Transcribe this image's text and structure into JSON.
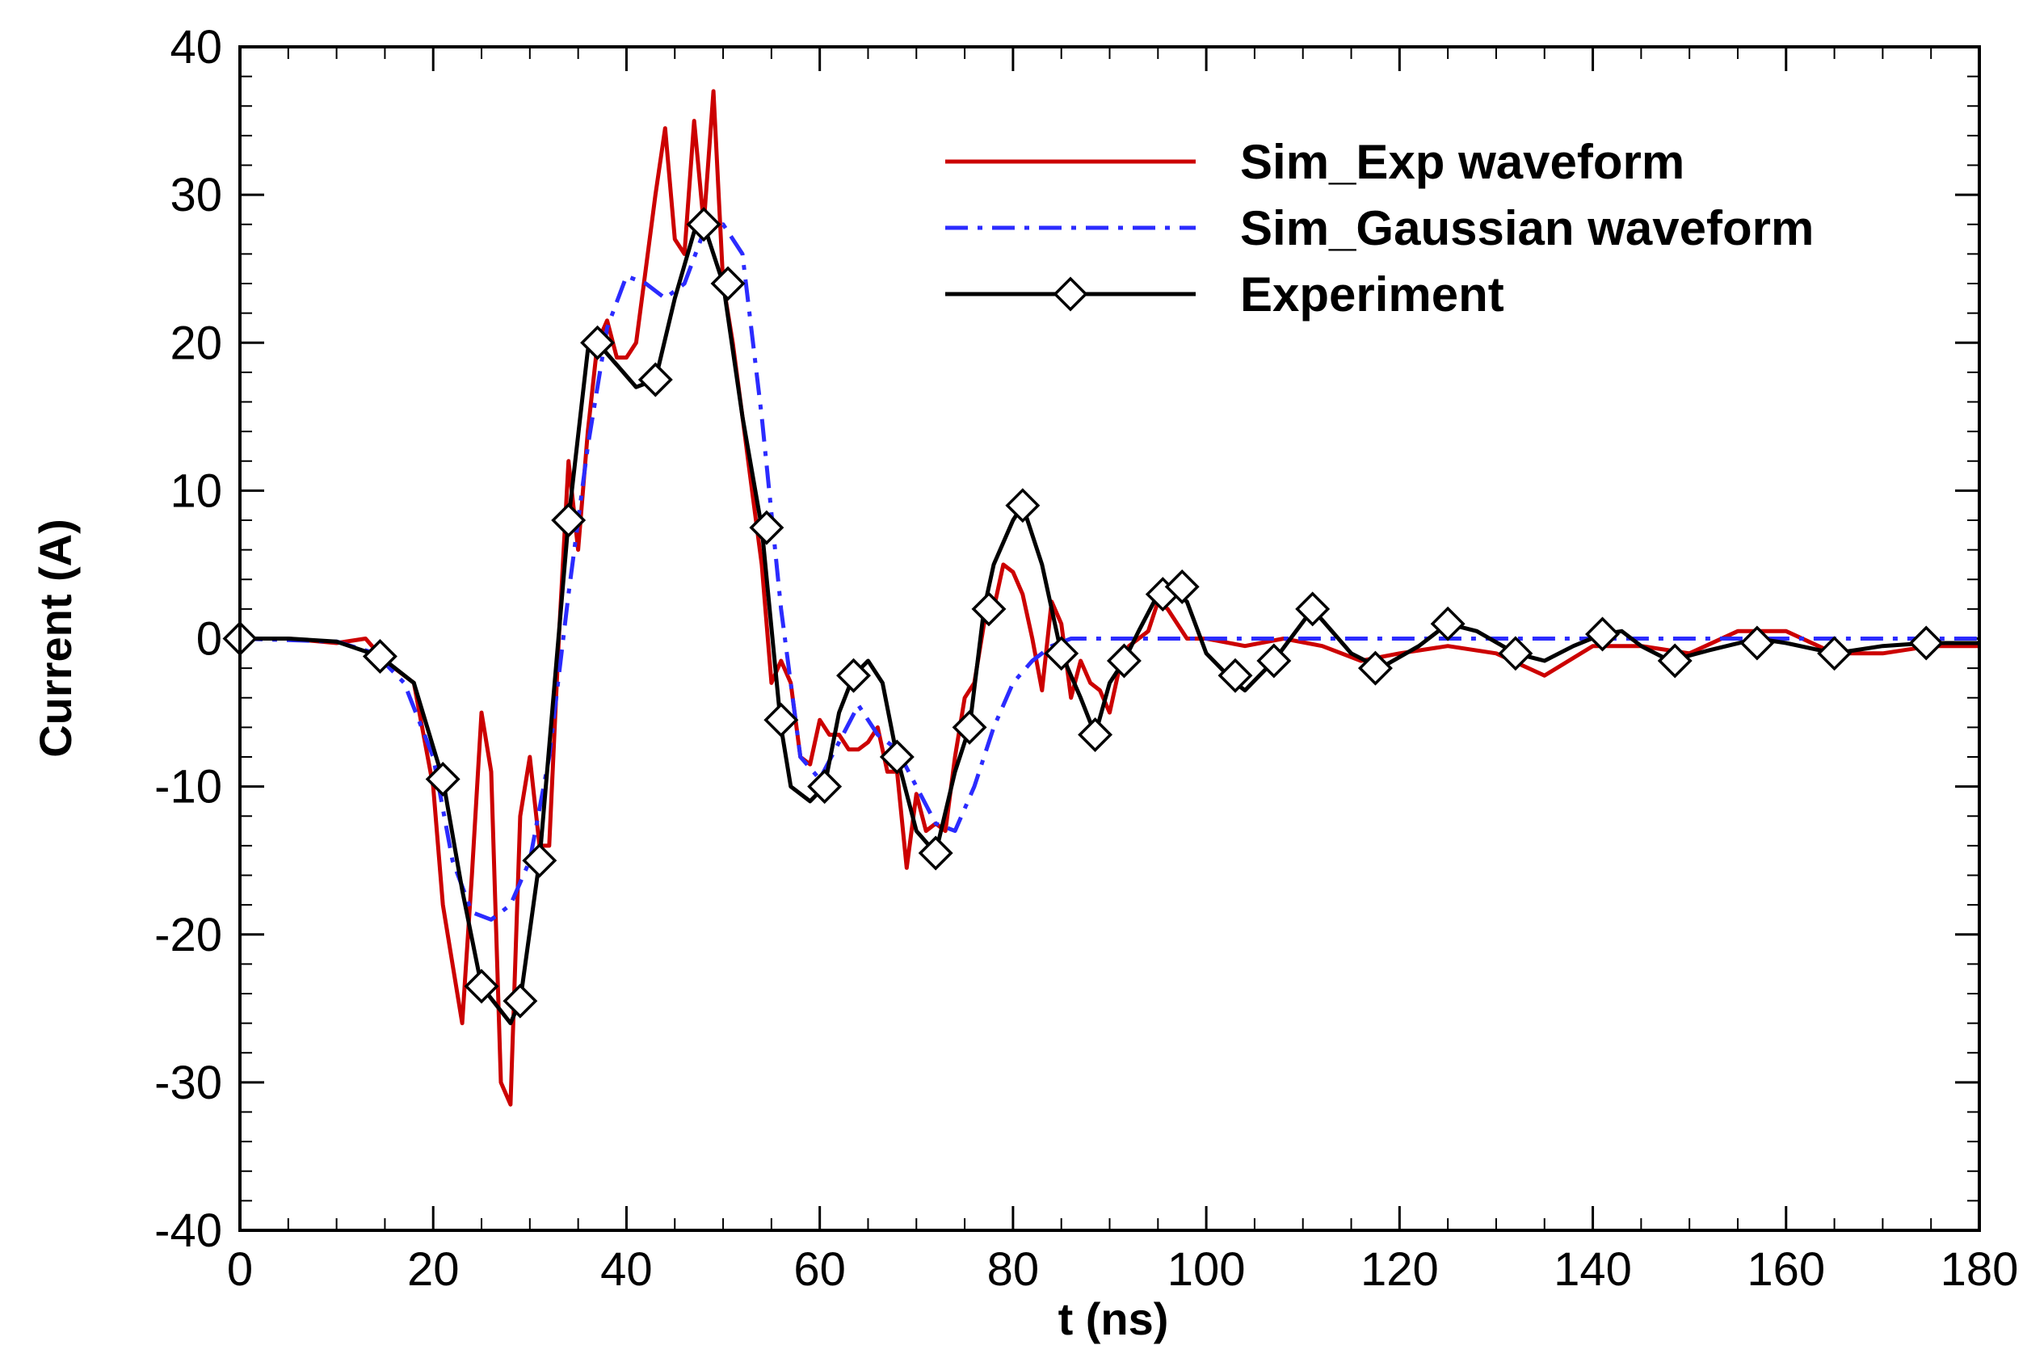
{
  "chart_data": {
    "type": "line",
    "title": "",
    "xlabel": "t (ns)",
    "ylabel": "Current (A)",
    "xlim": [
      0,
      180
    ],
    "ylim": [
      -40,
      40
    ],
    "xticks": [
      0,
      20,
      40,
      60,
      80,
      100,
      120,
      140,
      160,
      180
    ],
    "yticks": [
      -40,
      -30,
      -20,
      -10,
      0,
      10,
      20,
      30,
      40
    ],
    "grid": false,
    "legend_position": "top-right",
    "series": [
      {
        "name": "Sim_Exp waveform",
        "color": "#cc0000",
        "style": "solid",
        "marker": "none",
        "x": [
          0,
          5,
          10,
          13,
          15,
          18,
          20,
          21,
          22,
          23,
          24,
          25,
          26,
          27,
          28,
          29,
          30,
          31,
          32,
          33,
          34,
          35,
          36,
          37,
          38,
          39,
          40,
          41,
          42,
          43,
          44,
          45,
          46,
          47,
          48,
          49,
          50,
          51,
          52,
          53,
          54,
          55,
          56,
          57,
          58,
          59,
          60,
          61,
          62,
          63,
          64,
          65,
          66,
          67,
          68,
          69,
          70,
          71,
          72,
          73,
          74,
          75,
          76,
          77,
          78,
          79,
          80,
          81,
          82,
          83,
          84,
          85,
          86,
          87,
          88,
          89,
          90,
          91,
          92,
          93,
          94,
          95,
          96,
          98,
          100,
          104,
          108,
          112,
          116,
          120,
          125,
          130,
          135,
          140,
          145,
          150,
          155,
          160,
          165,
          170,
          175,
          180
        ],
        "y": [
          0,
          0,
          -0.3,
          0,
          -1.5,
          -3,
          -10,
          -18,
          -22,
          -26,
          -16,
          -5,
          -9,
          -30,
          -31.5,
          -12,
          -8,
          -14,
          -14,
          0,
          12,
          6,
          14,
          20,
          21.5,
          19,
          19,
          20,
          25,
          30,
          34.5,
          27,
          26,
          35,
          28,
          37,
          24,
          20,
          15,
          10,
          5,
          -3,
          -1.5,
          -3,
          -8,
          -8.5,
          -5.5,
          -6.5,
          -6.5,
          -7.5,
          -7.5,
          -7,
          -6,
          -9,
          -9,
          -15.5,
          -10.5,
          -13,
          -12.5,
          -13,
          -8,
          -4,
          -3,
          1,
          2,
          5,
          4.5,
          3,
          0,
          -3.5,
          2.5,
          1,
          -4,
          -1.5,
          -3,
          -3.5,
          -5,
          -2,
          -0.5,
          0,
          0.5,
          2.5,
          2,
          0,
          0,
          -0.5,
          0,
          -0.5,
          -1.5,
          -1,
          -0.5,
          -1,
          -2.5,
          -0.5,
          -0.5,
          -1,
          0.5,
          0.5,
          -1,
          -1,
          -0.5,
          -0.5
        ]
      },
      {
        "name": "Sim_Gaussian waveform",
        "color": "#2b2bff",
        "style": "dashdot",
        "marker": "none",
        "x": [
          0,
          10,
          14,
          17,
          20,
          22,
          24,
          26,
          28,
          30,
          32,
          34,
          36,
          38,
          40,
          42,
          44,
          46,
          48,
          50,
          52,
          54,
          56,
          58,
          60,
          62,
          64,
          66,
          68,
          70,
          72,
          74,
          76,
          78,
          80,
          82,
          84,
          86,
          88,
          90,
          100,
          120,
          140,
          160,
          180
        ],
        "y": [
          0,
          -0.2,
          -1,
          -3,
          -8,
          -15,
          -18.5,
          -19,
          -18,
          -15,
          -8,
          3,
          13,
          21,
          24.5,
          24,
          23,
          24,
          27.5,
          28,
          26,
          15,
          2,
          -8,
          -9.5,
          -7,
          -4.5,
          -6.5,
          -7.5,
          -10,
          -12.5,
          -13,
          -10,
          -6,
          -3,
          -1.5,
          -0.5,
          0,
          0,
          0,
          0,
          0,
          0,
          0,
          0
        ]
      },
      {
        "name": "Experiment",
        "color": "#000000",
        "style": "solid",
        "marker": "diamond",
        "x": [
          0,
          5,
          10,
          14.5,
          18,
          21,
          23,
          25,
          28,
          29,
          31,
          34,
          36,
          37,
          39,
          41,
          43,
          45,
          47,
          48,
          50,
          52,
          54,
          56,
          57,
          59,
          60.5,
          62,
          63.5,
          65,
          66.5,
          68,
          70,
          72,
          74,
          75.5,
          77,
          78,
          80,
          81,
          83,
          85,
          87,
          88.5,
          90,
          91.5,
          93,
          95,
          96,
          98,
          100,
          103,
          104,
          107,
          111,
          113,
          115,
          118,
          122,
          125,
          128,
          132,
          135,
          138,
          141,
          143,
          145,
          148,
          152,
          157,
          160,
          165,
          170,
          174.5,
          180
        ],
        "y": [
          0,
          0,
          -0.2,
          -1.2,
          -3,
          -9.5,
          -17,
          -23.5,
          -26,
          -24.5,
          -15,
          8,
          19.5,
          20,
          18.5,
          17,
          17.5,
          23,
          27.5,
          28,
          24,
          15,
          7.5,
          -6,
          -10,
          -11,
          -10,
          -5,
          -2.5,
          -1.5,
          -3,
          -8,
          -13,
          -14.5,
          -9,
          -6,
          2,
          5,
          8,
          9,
          5,
          -1,
          -4,
          -6.5,
          -3,
          -1.5,
          0.5,
          3,
          3.5,
          2.5,
          -1,
          -3,
          -3.5,
          -1.5,
          2,
          0.5,
          -1,
          -2,
          -0.5,
          1,
          0.5,
          -1,
          -1.5,
          -0.5,
          0.3,
          0.5,
          -0.5,
          -1.5,
          -0.8,
          0,
          -0.3,
          -1,
          -0.5,
          -0.3,
          -0.3
        ],
        "marker_x": [
          0,
          14.5,
          21,
          25,
          29,
          31,
          34,
          37,
          43,
          48,
          50.5,
          54.5,
          56,
          60.5,
          63.5,
          68,
          72,
          75.5,
          77.5,
          81,
          85,
          88.5,
          91.5,
          95.5,
          97.5,
          103,
          107,
          111,
          117.5,
          125,
          132,
          141,
          148.5,
          157,
          165,
          174.5
        ],
        "marker_y": [
          0,
          -1.2,
          -9.5,
          -23.5,
          -24.5,
          -15,
          8,
          20,
          17.5,
          28,
          24,
          7.5,
          -5.5,
          -10,
          -2.5,
          -8,
          -14.5,
          -6,
          2,
          9,
          -1,
          -6.5,
          -1.5,
          3,
          3.5,
          -2.5,
          -1.5,
          2,
          -2,
          1,
          -1,
          0.3,
          -1.5,
          -0.3,
          -1,
          -0.3
        ]
      }
    ]
  }
}
